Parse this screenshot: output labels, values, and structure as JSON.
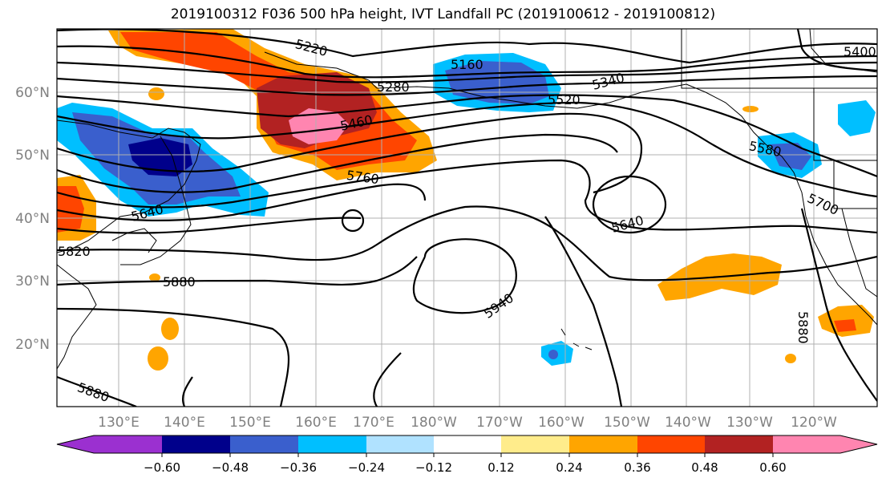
{
  "title": "2019100312 F036 500 hPa height, IVT Landfall PC (2019100612 - 2019100812)",
  "map": {
    "lat_labels": [
      "60°N",
      "50°N",
      "40°N",
      "30°N",
      "20°N"
    ],
    "lon_labels": [
      "130°E",
      "140°E",
      "150°E",
      "160°E",
      "170°E",
      "180°W",
      "170°W",
      "160°W",
      "150°W",
      "140°W",
      "130°W",
      "120°W"
    ],
    "contour_labels": [
      "5220",
      "5160",
      "5400",
      "5280",
      "5340",
      "5520",
      "5460",
      "5580",
      "5760",
      "5640",
      "5700",
      "5640",
      "5820",
      "5880",
      "5940",
      "5880",
      "5880"
    ]
  },
  "colorbar": {
    "ticks": [
      "−0.60",
      "−0.48",
      "−0.36",
      "−0.24",
      "−0.12",
      "0.12",
      "0.24",
      "0.36",
      "0.48",
      "0.60"
    ],
    "colors": [
      "#9b30d0",
      "#00008b",
      "#3a5fcd",
      "#00bfff",
      "#b0e2ff",
      "#ffffff",
      "#ffec8b",
      "#ffa500",
      "#ff4500",
      "#b22222",
      "#ff85b0"
    ]
  }
}
